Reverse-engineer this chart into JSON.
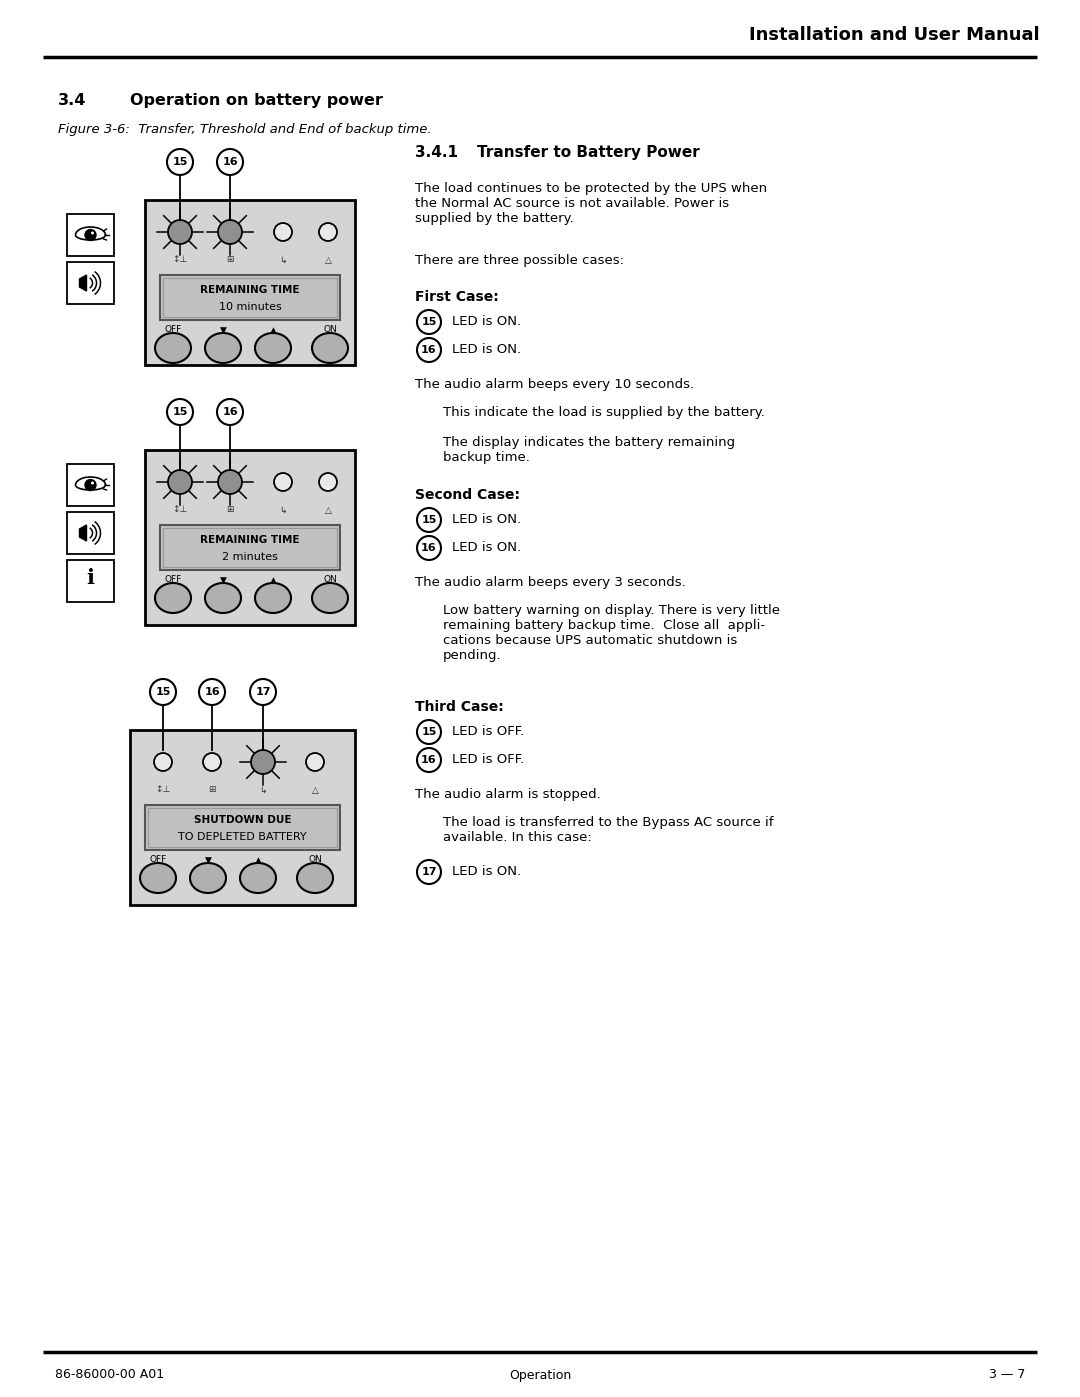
{
  "page_title": "Installation and User Manual",
  "footer_left": "86-86000-00 A01",
  "footer_center": "Operation",
  "footer_right": "3 — 7",
  "section_num": "3.4",
  "section_title": "Operation on battery power",
  "figure_caption": "Figure 3-6:  Transfer, Threshold and End of backup time.",
  "subsec_num": "3.4.1",
  "subsec_title": "Transfer to Battery Power",
  "para1": "The load continues to be protected by the UPS when\nthe Normal AC source is not available. Power is\nsupplied by the battery.",
  "para2": "There are three possible cases:",
  "first_case_title": "First Case:",
  "first_case_15": "LED is ON.",
  "first_case_16": "LED is ON.",
  "first_case_body": "The audio alarm beeps every 10 seconds.",
  "first_case_indent1": "This indicate the load is supplied by the battery.",
  "first_case_indent2": "The display indicates the battery remaining\nbackup time.",
  "second_case_title": "Second Case:",
  "second_case_15": "LED is ON.",
  "second_case_16": "LED is ON.",
  "second_case_body": "The audio alarm beeps every 3 seconds.",
  "second_case_indent": "Low battery warning on display. There is very little\nremaining battery backup time.  Close all  appli-\ncations because UPS automatic shutdown is\npending.",
  "third_case_title": "Third Case:",
  "third_case_15": "LED is OFF.",
  "third_case_16": "LED is OFF.",
  "third_case_body": "The audio alarm is stopped.",
  "third_case_indent": "The load is transferred to the Bypass AC source if\navailable. In this case:",
  "third_case_17": "LED is ON.",
  "bg_color": "#ffffff",
  "panel_bg": "#d4d4d4",
  "display_bg": "#c0c0c0",
  "button_color": "#b0b0b0",
  "led_on_color": "#909090",
  "led_off_color": "#e8e8e8",
  "icon_bg": "#ffffff"
}
